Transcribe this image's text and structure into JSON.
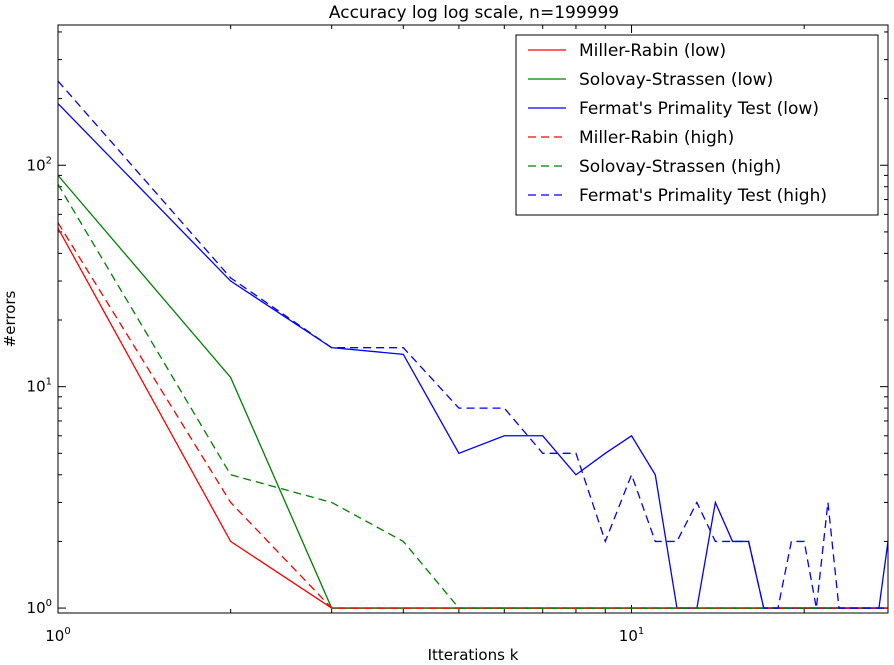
{
  "chart_data": {
    "type": "line",
    "title": "Accuracy log log scale, n=199999",
    "xlabel": "Itterations k",
    "ylabel": "#errors",
    "xscale": "log",
    "yscale": "log",
    "xlim": [
      1,
      28
    ],
    "ylim": [
      0.95,
      430
    ],
    "grid": false,
    "legend_position": "top-right",
    "x_ticks": [
      {
        "value": 1,
        "base": "10",
        "exp": "0"
      },
      {
        "value": 10,
        "base": "10",
        "exp": "1"
      }
    ],
    "y_ticks": [
      {
        "value": 1,
        "base": "10",
        "exp": "0"
      },
      {
        "value": 10,
        "base": "10",
        "exp": "1"
      },
      {
        "value": 100,
        "base": "10",
        "exp": "2"
      }
    ],
    "x": [
      1,
      2,
      3,
      4,
      5,
      6,
      7,
      8,
      9,
      10,
      11,
      12,
      13,
      14,
      15,
      16,
      17,
      18,
      19,
      20,
      21,
      22,
      23,
      24,
      25,
      26,
      27,
      28
    ],
    "series": [
      {
        "name": "Miller-Rabin (low)",
        "color": "#ff0000",
        "dash": "solid",
        "values": [
          52,
          2,
          1,
          1,
          1,
          1,
          1,
          1,
          1,
          1,
          1,
          1,
          1,
          1,
          1,
          1,
          1,
          1,
          1,
          1,
          1,
          1,
          1,
          1,
          1,
          1,
          1,
          1
        ]
      },
      {
        "name": "Solovay-Strassen (low)",
        "color": "#008000",
        "dash": "solid",
        "values": [
          90,
          11,
          1,
          1,
          1,
          1,
          1,
          1,
          1,
          1,
          1,
          1,
          1,
          1,
          1,
          1,
          1,
          1,
          1,
          1,
          1,
          1,
          1,
          1,
          1,
          1,
          1,
          1
        ]
      },
      {
        "name": "Fermat's Primality Test (low)",
        "color": "#0000ff",
        "dash": "solid",
        "values": [
          190,
          30,
          15,
          14,
          5,
          6,
          6,
          4,
          5,
          6,
          4,
          1,
          1,
          3,
          2,
          2,
          1,
          1,
          1,
          1,
          1,
          1,
          1,
          1,
          1,
          1,
          1,
          2
        ]
      },
      {
        "name": "Miller-Rabin (high)",
        "color": "#ff0000",
        "dash": "dashed",
        "values": [
          55,
          3,
          1,
          1,
          1,
          1,
          1,
          1,
          1,
          1,
          1,
          1,
          1,
          1,
          1,
          1,
          1,
          1,
          1,
          1,
          1,
          1,
          1,
          1,
          1,
          1,
          1,
          1
        ]
      },
      {
        "name": "Solovay-Strassen (high)",
        "color": "#008000",
        "dash": "dashed",
        "values": [
          82,
          4,
          3,
          2,
          1,
          1,
          1,
          1,
          1,
          1,
          1,
          1,
          1,
          1,
          1,
          1,
          1,
          1,
          1,
          1,
          1,
          1,
          1,
          1,
          1,
          1,
          1,
          1
        ]
      },
      {
        "name": "Fermat's Primality Test (high)",
        "color": "#0000ff",
        "dash": "dashed",
        "values": [
          240,
          31,
          15,
          15,
          8,
          8,
          5,
          5,
          2,
          4,
          2,
          2,
          3,
          2,
          2,
          2,
          1,
          1,
          2,
          2,
          1,
          3,
          1,
          1,
          1,
          1,
          1,
          1
        ]
      }
    ]
  }
}
